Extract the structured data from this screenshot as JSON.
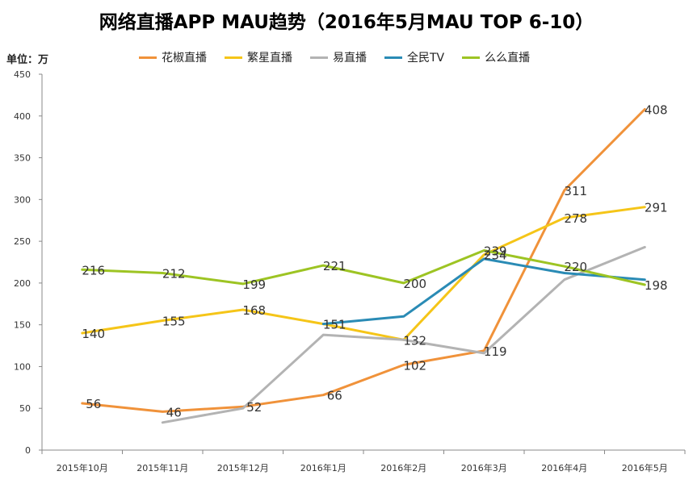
{
  "chart_data": {
    "type": "line",
    "title": "网络直播APP MAU趋势（2016年5月MAU TOP 6-10）",
    "unit_label": "单位：万",
    "categories": [
      "2015年10月",
      "2015年11月",
      "2015年12月",
      "2016年1月",
      "2016年2月",
      "2016年3月",
      "2016年4月",
      "2016年5月"
    ],
    "ylim": [
      0,
      450
    ],
    "yticks": [
      0,
      50,
      100,
      150,
      200,
      250,
      300,
      350,
      400,
      450
    ],
    "grid": false,
    "legend_position": "top",
    "series": [
      {
        "name": "花椒直播",
        "color": "#f0923a",
        "values": [
          56,
          46,
          52,
          66,
          102,
          119,
          311,
          408
        ],
        "labels": [
          "56",
          "46",
          "52",
          "66",
          "102",
          "119",
          "311",
          "408"
        ]
      },
      {
        "name": "繁星直播",
        "color": "#f5c518",
        "values": [
          140,
          155,
          168,
          151,
          132,
          234,
          278,
          291
        ],
        "labels": [
          "140",
          "155",
          "168",
          "151",
          "132",
          "234",
          "278",
          "291"
        ]
      },
      {
        "name": "易直播",
        "color": "#b3b3b3",
        "values": [
          null,
          33,
          50,
          138,
          132,
          116,
          204,
          243
        ],
        "labels": [
          null,
          null,
          null,
          null,
          null,
          null,
          null,
          null
        ]
      },
      {
        "name": "全民TV",
        "color": "#2a8bb5",
        "values": [
          null,
          null,
          null,
          151,
          160,
          229,
          212,
          204
        ],
        "labels": [
          null,
          null,
          null,
          null,
          null,
          null,
          null,
          null
        ]
      },
      {
        "name": "么么直播",
        "color": "#9dc423",
        "values": [
          216,
          212,
          199,
          221,
          200,
          239,
          220,
          198
        ],
        "labels": [
          "216",
          "212",
          "199",
          "221",
          "200",
          "239",
          "220",
          "198"
        ]
      }
    ]
  }
}
